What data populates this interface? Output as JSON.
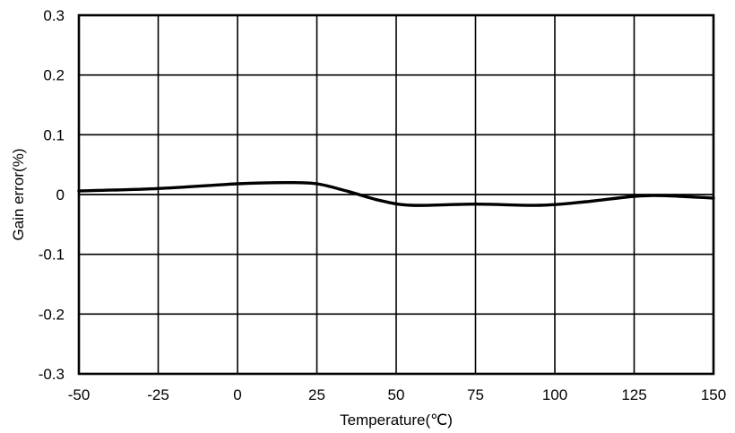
{
  "chart_data": {
    "type": "line",
    "xlabel": "Temperature(℃)",
    "ylabel": "Gain error(%)",
    "xlim": [
      -50,
      150
    ],
    "ylim": [
      -0.3,
      0.3
    ],
    "x_ticks": [
      "-50",
      "-25",
      "0",
      "25",
      "50",
      "75",
      "100",
      "125",
      "150"
    ],
    "y_ticks": [
      "0.3",
      "0.2",
      "0.1",
      "0",
      "-0.1",
      "-0.2",
      "-0.3"
    ],
    "grid": true,
    "series": [
      {
        "x": [
          -50,
          -25,
          0,
          15,
          25,
          35,
          45,
          55,
          75,
          95,
          110,
          125,
          135,
          150
        ],
        "y": [
          0.006,
          0.01,
          0.018,
          0.02,
          0.018,
          0.005,
          -0.01,
          -0.018,
          -0.016,
          -0.018,
          -0.012,
          -0.003,
          -0.002,
          -0.006
        ],
        "color": "#000000"
      }
    ]
  }
}
